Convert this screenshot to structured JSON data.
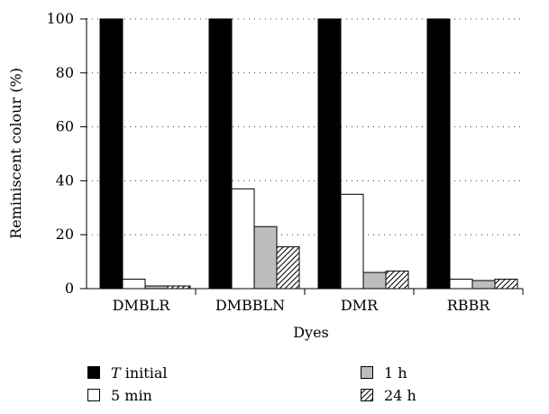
{
  "chart_data": {
    "type": "bar",
    "categories": [
      "DMBLR",
      "DMBBLN",
      "DMR",
      "RBBR"
    ],
    "series": [
      {
        "name": "T initial",
        "values": [
          100,
          100,
          100,
          100
        ],
        "fill": "#000000",
        "pattern": "solid"
      },
      {
        "name": "5 min",
        "values": [
          3.5,
          37,
          35,
          3.5
        ],
        "fill": "#ffffff",
        "pattern": "solid"
      },
      {
        "name": "1 h",
        "values": [
          1,
          23,
          6,
          3
        ],
        "fill": "#bdbdbd",
        "pattern": "solid"
      },
      {
        "name": "24 h",
        "values": [
          1,
          15.5,
          6.5,
          3.5
        ],
        "fill": "#ffffff",
        "pattern": "hatch"
      }
    ],
    "xlabel": "Dyes",
    "ylabel": "Reminiscent colour (%)",
    "ylim": [
      0,
      100
    ],
    "yticks": [
      0,
      20,
      40,
      60,
      80,
      100
    ],
    "grid": "horizontal dotted",
    "legend_position": "bottom"
  },
  "legend": {
    "t_initial_prefix": "T",
    "t_initial_suffix": " initial",
    "five_min": "5 min",
    "one_h": "1 h",
    "twenty_four_h": "24 h"
  }
}
